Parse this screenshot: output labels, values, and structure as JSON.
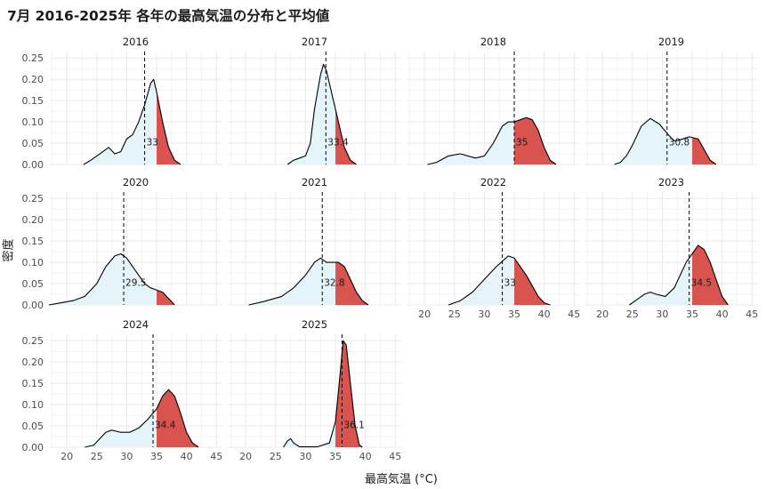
{
  "chart_data": {
    "type": "area",
    "title": "7月 2016-2025年 各年の最高気温の分布と平均値",
    "xlabel": "最高気温 (°C)",
    "ylabel": "密度",
    "xlim": [
      17,
      46
    ],
    "ylim": [
      0,
      0.265
    ],
    "x_ticks": [
      "20",
      "25",
      "30",
      "35",
      "40",
      "45"
    ],
    "y_ticks": [
      "0.00",
      "0.05",
      "0.10",
      "0.15",
      "0.20",
      "0.25"
    ],
    "threshold": 35,
    "colors": {
      "fill_below": "#e5f4f9",
      "fill_above": "#d9534f",
      "line": "#000000",
      "grid": "#ebebeb"
    },
    "panels": [
      {
        "year": "2016",
        "mean": 33.0,
        "mean_label": "33",
        "points": [
          [
            22.8,
            0
          ],
          [
            24,
            0.01
          ],
          [
            25.5,
            0.025
          ],
          [
            27,
            0.04
          ],
          [
            28,
            0.025
          ],
          [
            29,
            0.03
          ],
          [
            30,
            0.06
          ],
          [
            31,
            0.07
          ],
          [
            32,
            0.1
          ],
          [
            33,
            0.14
          ],
          [
            34,
            0.19
          ],
          [
            34.5,
            0.2
          ],
          [
            35,
            0.17
          ],
          [
            36,
            0.1
          ],
          [
            37,
            0.04
          ],
          [
            38,
            0.01
          ],
          [
            39,
            0
          ]
        ]
      },
      {
        "year": "2017",
        "mean": 33.4,
        "mean_label": "33.4",
        "points": [
          [
            27,
            0
          ],
          [
            28,
            0.01
          ],
          [
            29,
            0.015
          ],
          [
            30,
            0.02
          ],
          [
            30.8,
            0.05
          ],
          [
            31.5,
            0.13
          ],
          [
            32.5,
            0.21
          ],
          [
            33,
            0.235
          ],
          [
            33.5,
            0.22
          ],
          [
            34.5,
            0.16
          ],
          [
            35.5,
            0.1
          ],
          [
            36.5,
            0.04
          ],
          [
            37.5,
            0.01
          ],
          [
            38.5,
            0
          ]
        ]
      },
      {
        "year": "2018",
        "mean": 35.0,
        "mean_label": "35",
        "points": [
          [
            20.5,
            0
          ],
          [
            22,
            0.005
          ],
          [
            24,
            0.02
          ],
          [
            26,
            0.025
          ],
          [
            28.5,
            0.015
          ],
          [
            30,
            0.02
          ],
          [
            31.5,
            0.05
          ],
          [
            33,
            0.09
          ],
          [
            34,
            0.1
          ],
          [
            35,
            0.1
          ],
          [
            36,
            0.105
          ],
          [
            37,
            0.11
          ],
          [
            38,
            0.105
          ],
          [
            39,
            0.08
          ],
          [
            40,
            0.04
          ],
          [
            41,
            0.01
          ],
          [
            42,
            0
          ]
        ]
      },
      {
        "year": "2019",
        "mean": 30.8,
        "mean_label": "30.8",
        "points": [
          [
            22,
            0
          ],
          [
            23,
            0.005
          ],
          [
            24,
            0.02
          ],
          [
            25,
            0.045
          ],
          [
            26.5,
            0.09
          ],
          [
            28,
            0.108
          ],
          [
            29.5,
            0.095
          ],
          [
            31,
            0.07
          ],
          [
            32,
            0.055
          ],
          [
            33,
            0.058
          ],
          [
            34.5,
            0.065
          ],
          [
            36,
            0.06
          ],
          [
            37,
            0.035
          ],
          [
            38,
            0.01
          ],
          [
            39,
            0
          ]
        ]
      },
      {
        "year": "2020",
        "mean": 29.5,
        "mean_label": "29.5",
        "points": [
          [
            17,
            0
          ],
          [
            19,
            0.005
          ],
          [
            21,
            0.01
          ],
          [
            23,
            0.02
          ],
          [
            25,
            0.05
          ],
          [
            26.5,
            0.09
          ],
          [
            28,
            0.115
          ],
          [
            29,
            0.12
          ],
          [
            30,
            0.11
          ],
          [
            31.5,
            0.08
          ],
          [
            33,
            0.05
          ],
          [
            34,
            0.04
          ],
          [
            35,
            0.035
          ],
          [
            36,
            0.03
          ],
          [
            37,
            0.015
          ],
          [
            38,
            0
          ]
        ]
      },
      {
        "year": "2021",
        "mean": 32.8,
        "mean_label": "32.8",
        "points": [
          [
            20.5,
            0
          ],
          [
            23,
            0.008
          ],
          [
            26,
            0.02
          ],
          [
            28,
            0.04
          ],
          [
            30,
            0.07
          ],
          [
            31.5,
            0.1
          ],
          [
            32.5,
            0.11
          ],
          [
            33.5,
            0.1
          ],
          [
            34.5,
            0.1
          ],
          [
            35.5,
            0.1
          ],
          [
            36.5,
            0.09
          ],
          [
            37.5,
            0.06
          ],
          [
            38.5,
            0.03
          ],
          [
            39.5,
            0.01
          ],
          [
            40.5,
            0
          ]
        ]
      },
      {
        "year": "2022",
        "mean": 33.0,
        "mean_label": "33",
        "points": [
          [
            24,
            0
          ],
          [
            26,
            0.01
          ],
          [
            28,
            0.03
          ],
          [
            30,
            0.06
          ],
          [
            32,
            0.09
          ],
          [
            34,
            0.115
          ],
          [
            35,
            0.11
          ],
          [
            36,
            0.09
          ],
          [
            37,
            0.07
          ],
          [
            38,
            0.045
          ],
          [
            39,
            0.02
          ],
          [
            40,
            0.005
          ],
          [
            41,
            0
          ]
        ]
      },
      {
        "year": "2023",
        "mean": 34.5,
        "mean_label": "34.5",
        "points": [
          [
            24.5,
            0
          ],
          [
            25.5,
            0.01
          ],
          [
            27,
            0.025
          ],
          [
            28,
            0.03
          ],
          [
            29,
            0.025
          ],
          [
            30.5,
            0.02
          ],
          [
            32,
            0.04
          ],
          [
            33,
            0.07
          ],
          [
            34,
            0.1
          ],
          [
            35,
            0.12
          ],
          [
            36,
            0.14
          ],
          [
            37,
            0.13
          ],
          [
            38,
            0.1
          ],
          [
            39,
            0.06
          ],
          [
            40,
            0.02
          ],
          [
            41,
            0
          ]
        ]
      },
      {
        "year": "2024",
        "mean": 34.4,
        "mean_label": "34.4",
        "points": [
          [
            23,
            0
          ],
          [
            24.5,
            0.005
          ],
          [
            25.5,
            0.02
          ],
          [
            26.5,
            0.035
          ],
          [
            27.5,
            0.04
          ],
          [
            29,
            0.035
          ],
          [
            30.5,
            0.035
          ],
          [
            32,
            0.045
          ],
          [
            33.5,
            0.065
          ],
          [
            35,
            0.09
          ],
          [
            36,
            0.12
          ],
          [
            37,
            0.135
          ],
          [
            38,
            0.12
          ],
          [
            39,
            0.08
          ],
          [
            40,
            0.035
          ],
          [
            41,
            0.01
          ],
          [
            42,
            0
          ]
        ]
      },
      {
        "year": "2025",
        "mean": 36.1,
        "mean_label": "36.1",
        "points": [
          [
            26.3,
            0
          ],
          [
            27,
            0.015
          ],
          [
            27.5,
            0.02
          ],
          [
            28,
            0.01
          ],
          [
            29,
            0.001
          ],
          [
            32,
            0.001
          ],
          [
            34,
            0.01
          ],
          [
            35,
            0.06
          ],
          [
            35.7,
            0.16
          ],
          [
            36.3,
            0.25
          ],
          [
            36.8,
            0.24
          ],
          [
            37.5,
            0.15
          ],
          [
            38.3,
            0.05
          ],
          [
            39,
            0.005
          ],
          [
            39.5,
            0
          ]
        ]
      }
    ]
  }
}
